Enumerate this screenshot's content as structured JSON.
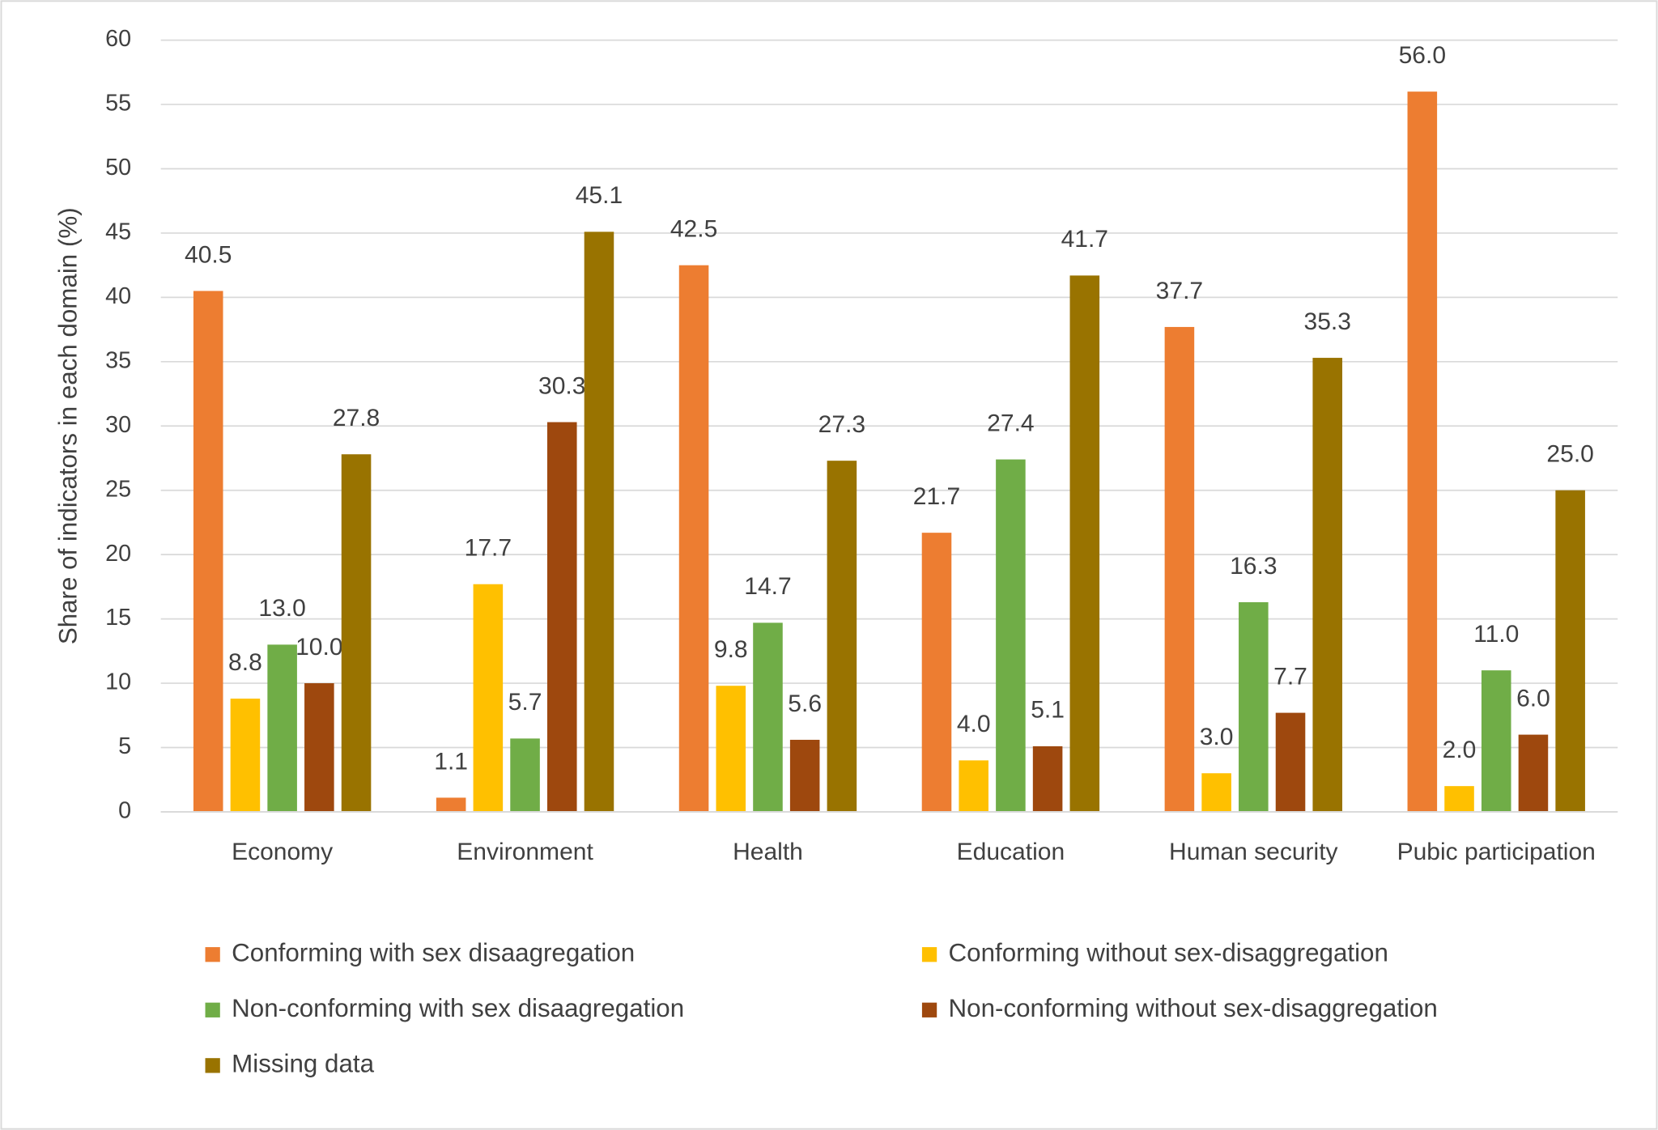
{
  "chart_data": {
    "type": "bar",
    "ylabel": "Share of indicators in each domain (%)",
    "categories": [
      "Economy",
      "Environment",
      "Health",
      "Education",
      "Human security",
      "Pubic participation"
    ],
    "series": [
      {
        "name": "Conforming with sex disaagregation",
        "color": "#ED7D31",
        "values": [
          40.5,
          1.1,
          42.5,
          21.7,
          37.7,
          56
        ],
        "value_labels": [
          "40.5",
          "1.1",
          "42.5",
          "21.7",
          "37.7",
          "56.0"
        ]
      },
      {
        "name": "Conforming without sex-disaggregation",
        "color": "#FFC000",
        "values": [
          8.8,
          17.7,
          9.8,
          4,
          3,
          2
        ],
        "value_labels": [
          "8.8",
          "17.7",
          "9.8",
          "4.0",
          "3.0",
          "2.0"
        ]
      },
      {
        "name": "Non-conforming with sex disaagregation",
        "color": "#70AD47",
        "values": [
          13,
          5.7,
          14.7,
          27.4,
          16.3,
          11
        ],
        "value_labels": [
          "13.0",
          "5.7",
          "14.7",
          "27.4",
          "16.3",
          "11.0"
        ]
      },
      {
        "name": "Non-conforming without sex-disaggregation",
        "color": "#9E480E",
        "values": [
          10,
          30.3,
          5.6,
          5.1,
          7.7,
          6
        ],
        "value_labels": [
          "10.0",
          "30.3",
          "5.6",
          "5.1",
          "7.7",
          "6.0"
        ]
      },
      {
        "name": "Missing data",
        "color": "#997300",
        "values": [
          27.8,
          45.1,
          27.3,
          41.7,
          35.3,
          25
        ],
        "value_labels": [
          "27.8",
          "45.1",
          "27.3",
          "41.7",
          "35.3",
          "25.0"
        ]
      }
    ],
    "ylim": [
      0,
      60
    ],
    "yticks": [
      0,
      5,
      10,
      15,
      20,
      25,
      30,
      35,
      40,
      45,
      50,
      55,
      60
    ],
    "grid": true,
    "legend": "bottom"
  }
}
